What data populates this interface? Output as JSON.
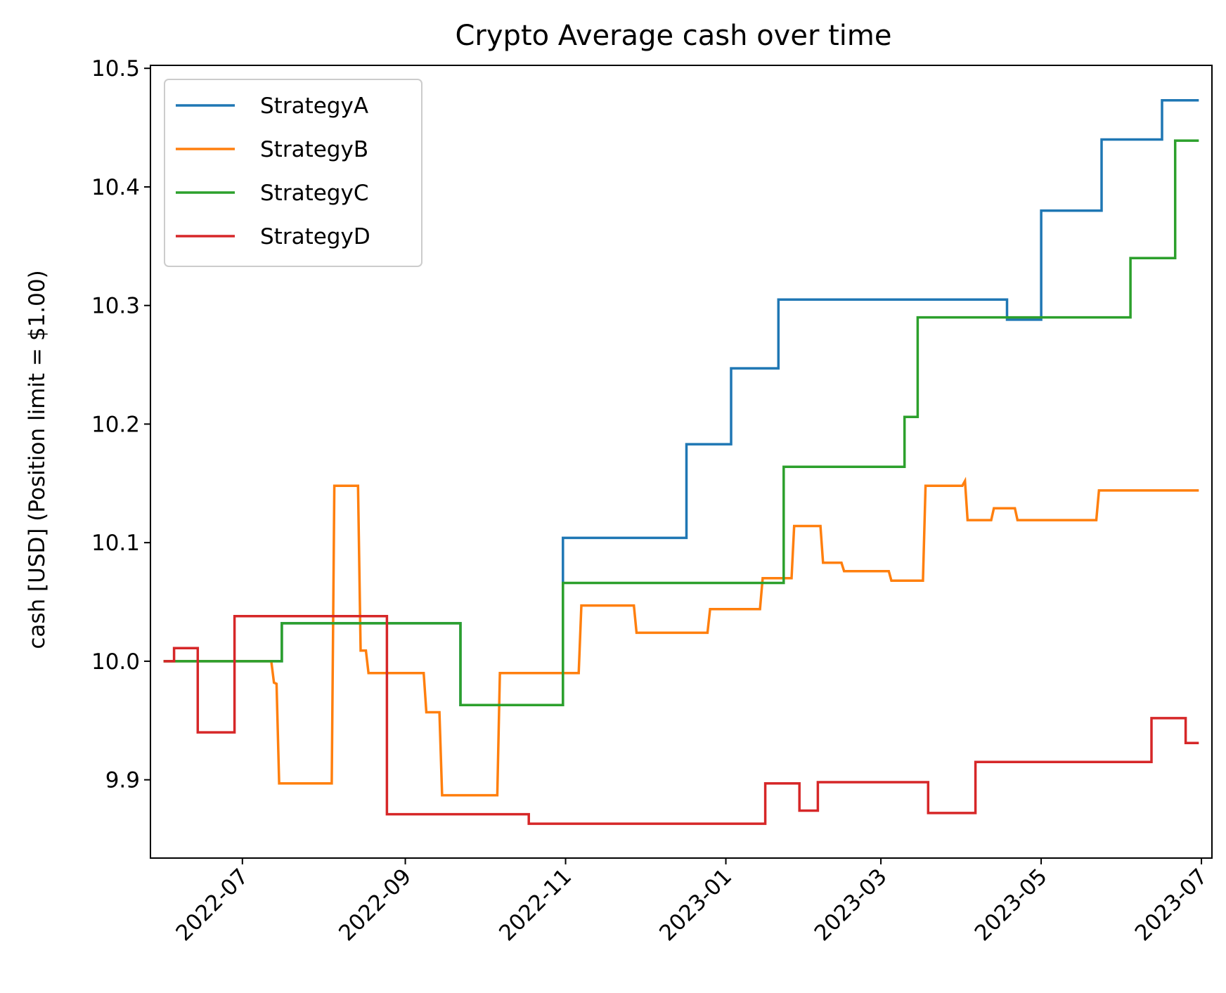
{
  "chart_data": {
    "type": "line",
    "title": "Crypto Average cash over time",
    "xlabel": "",
    "ylabel": "cash [USD] (Position limit = $1.00)",
    "xlim": [
      "2022-05-27",
      "2023-07-05"
    ],
    "ylim": [
      9.834,
      10.5025
    ],
    "x_ticks": [
      "2022-07",
      "2022-09",
      "2022-11",
      "2023-01",
      "2023-03",
      "2023-05",
      "2023-07"
    ],
    "y_ticks": [
      "9.9",
      "10.0",
      "10.1",
      "10.2",
      "10.3",
      "10.4",
      "10.5"
    ],
    "grid": false,
    "legend_position": "top-left",
    "series": [
      {
        "name": "StrategyA",
        "color": "#1f77b4",
        "points": [
          [
            "2022-06-01",
            10.0
          ],
          [
            "2022-07-16",
            10.0
          ],
          [
            "2022-07-16",
            10.032
          ],
          [
            "2022-09-22",
            10.032
          ],
          [
            "2022-09-22",
            9.963
          ],
          [
            "2022-10-31",
            9.963
          ],
          [
            "2022-10-31",
            10.104
          ],
          [
            "2022-12-17",
            10.104
          ],
          [
            "2022-12-17",
            10.183
          ],
          [
            "2023-01-03",
            10.183
          ],
          [
            "2023-01-03",
            10.247
          ],
          [
            "2023-01-21",
            10.247
          ],
          [
            "2023-01-21",
            10.305
          ],
          [
            "2023-04-18",
            10.305
          ],
          [
            "2023-04-18",
            10.288
          ],
          [
            "2023-05-01",
            10.288
          ],
          [
            "2023-05-01",
            10.38
          ],
          [
            "2023-05-24",
            10.38
          ],
          [
            "2023-05-24",
            10.44
          ],
          [
            "2023-06-16",
            10.44
          ],
          [
            "2023-06-16",
            10.473
          ],
          [
            "2023-06-30",
            10.473
          ]
        ]
      },
      {
        "name": "StrategyB",
        "color": "#ff7f0e",
        "points": [
          [
            "2022-06-01",
            10.0
          ],
          [
            "2022-07-12",
            10.0
          ],
          [
            "2022-07-13",
            9.982
          ],
          [
            "2022-07-14",
            9.981
          ],
          [
            "2022-07-15",
            9.897
          ],
          [
            "2022-08-04",
            9.897
          ],
          [
            "2022-08-05",
            10.148
          ],
          [
            "2022-08-14",
            10.148
          ],
          [
            "2022-08-15",
            10.009
          ],
          [
            "2022-08-17",
            10.009
          ],
          [
            "2022-08-18",
            9.99
          ],
          [
            "2022-09-08",
            9.99
          ],
          [
            "2022-09-09",
            9.957
          ],
          [
            "2022-09-14",
            9.957
          ],
          [
            "2022-09-15",
            9.887
          ],
          [
            "2022-10-06",
            9.887
          ],
          [
            "2022-10-07",
            9.99
          ],
          [
            "2022-11-06",
            9.99
          ],
          [
            "2022-11-07",
            10.047
          ],
          [
            "2022-11-27",
            10.047
          ],
          [
            "2022-11-28",
            10.024
          ],
          [
            "2022-12-25",
            10.024
          ],
          [
            "2022-12-26",
            10.044
          ],
          [
            "2023-01-14",
            10.044
          ],
          [
            "2023-01-15",
            10.07
          ],
          [
            "2023-01-26",
            10.07
          ],
          [
            "2023-01-27",
            10.114
          ],
          [
            "2023-02-06",
            10.114
          ],
          [
            "2023-02-07",
            10.083
          ],
          [
            "2023-02-14",
            10.083
          ],
          [
            "2023-02-15",
            10.076
          ],
          [
            "2023-03-04",
            10.076
          ],
          [
            "2023-03-05",
            10.068
          ],
          [
            "2023-03-17",
            10.068
          ],
          [
            "2023-03-18",
            10.148
          ],
          [
            "2023-04-01",
            10.148
          ],
          [
            "2023-04-02",
            10.152
          ],
          [
            "2023-04-03",
            10.119
          ],
          [
            "2023-04-12",
            10.119
          ],
          [
            "2023-04-13",
            10.129
          ],
          [
            "2023-04-21",
            10.129
          ],
          [
            "2023-04-22",
            10.119
          ],
          [
            "2023-05-22",
            10.119
          ],
          [
            "2023-05-23",
            10.144
          ],
          [
            "2023-06-30",
            10.144
          ]
        ]
      },
      {
        "name": "StrategyC",
        "color": "#2ca02c",
        "points": [
          [
            "2022-06-01",
            10.0
          ],
          [
            "2022-07-16",
            10.0
          ],
          [
            "2022-07-16",
            10.032
          ],
          [
            "2022-09-22",
            10.032
          ],
          [
            "2022-09-22",
            9.963
          ],
          [
            "2022-10-31",
            9.963
          ],
          [
            "2022-10-31",
            10.066
          ],
          [
            "2023-01-23",
            10.066
          ],
          [
            "2023-01-23",
            10.164
          ],
          [
            "2023-03-10",
            10.164
          ],
          [
            "2023-03-10",
            10.206
          ],
          [
            "2023-03-15",
            10.206
          ],
          [
            "2023-03-15",
            10.29
          ],
          [
            "2023-06-04",
            10.29
          ],
          [
            "2023-06-04",
            10.34
          ],
          [
            "2023-06-21",
            10.34
          ],
          [
            "2023-06-21",
            10.439
          ],
          [
            "2023-06-30",
            10.439
          ]
        ]
      },
      {
        "name": "StrategyD",
        "color": "#d62728",
        "points": [
          [
            "2022-06-01",
            10.0
          ],
          [
            "2022-06-05",
            10.0
          ],
          [
            "2022-06-05",
            10.011
          ],
          [
            "2022-06-14",
            10.011
          ],
          [
            "2022-06-14",
            9.94
          ],
          [
            "2022-06-28",
            9.94
          ],
          [
            "2022-06-28",
            10.038
          ],
          [
            "2022-08-25",
            10.038
          ],
          [
            "2022-08-25",
            9.871
          ],
          [
            "2022-10-18",
            9.871
          ],
          [
            "2022-10-18",
            9.863
          ],
          [
            "2023-01-16",
            9.863
          ],
          [
            "2023-01-16",
            9.897
          ],
          [
            "2023-01-29",
            9.897
          ],
          [
            "2023-01-29",
            9.874
          ],
          [
            "2023-02-05",
            9.874
          ],
          [
            "2023-02-05",
            9.898
          ],
          [
            "2023-03-19",
            9.898
          ],
          [
            "2023-03-19",
            9.872
          ],
          [
            "2023-04-06",
            9.872
          ],
          [
            "2023-04-06",
            9.915
          ],
          [
            "2023-05-25",
            9.915
          ],
          [
            "2023-06-12",
            9.915
          ],
          [
            "2023-06-12",
            9.952
          ],
          [
            "2023-06-25",
            9.952
          ],
          [
            "2023-06-25",
            9.931
          ],
          [
            "2023-06-30",
            9.931
          ]
        ]
      }
    ]
  }
}
